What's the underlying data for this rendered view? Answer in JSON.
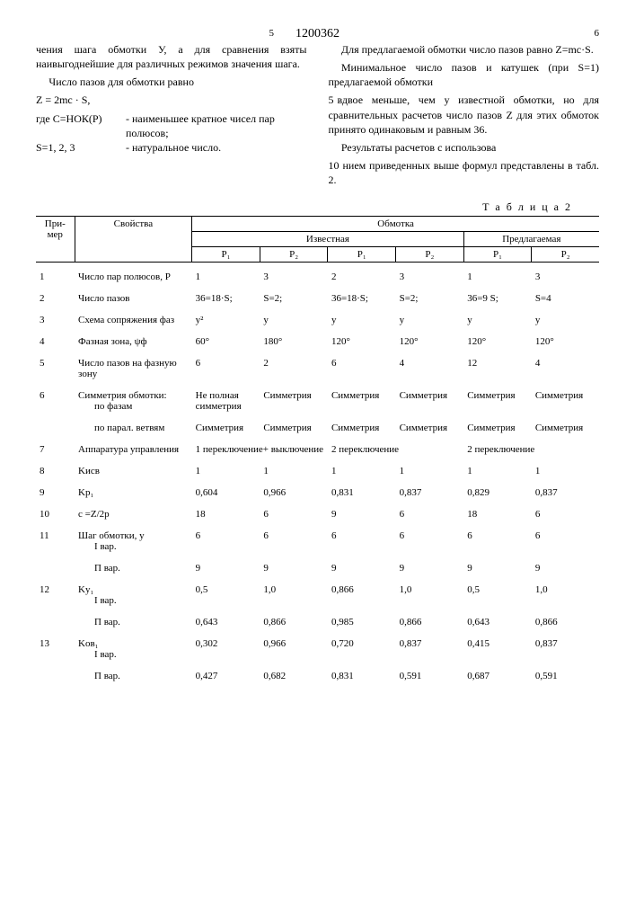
{
  "doc_number": "1200362",
  "col_left_marker": "5",
  "col_right_marker": "6",
  "line5": "5",
  "line10": "10",
  "left_col": {
    "p1": "чения шага обмотки У, а для срав­нения взяты наивыгоднейшие для различных режимов значения ша­га.",
    "p2": "Число пазов для обмотки равно",
    "formula": "Z = 2mс · S,",
    "where1_l": "где С=НОК(Р)",
    "where1_r": "- наименьшее кратное чисел пар полюсов;",
    "where2_l": "S=1, 2, 3",
    "where2_r": "- натуральное число."
  },
  "right_col": {
    "p1": "Для предлагаемой обмотки число пазов равно Z=mс·S.",
    "p2a": "Минимальное число пазов и кату­шек (при S=1) предлагаемой обмотки",
    "p2b": "вдвое меньше, чем у известной обмот­ки, но для сравнительных рас­четов число пазов Z для этих обмо­ток принято одинаковым и равным 36.",
    "p3a": "Результаты расчетов с использова­",
    "p3b": "нием приведенных выше формул пред­ставлены в табл. 2."
  },
  "table_caption": "Т а б л и ц а 2",
  "headers": {
    "primer": "При­мер",
    "prop": "Свойства",
    "obm": "Обмотка",
    "izv": "Известная",
    "pred": "Предлагаемая",
    "p1": "P₁",
    "p2": "P₂"
  },
  "rows": [
    {
      "n": "1",
      "prop": "Число пар полюсов, Р",
      "c": [
        "1",
        "3",
        "2",
        "3",
        "1",
        "3"
      ]
    },
    {
      "n": "2",
      "prop": "Число пазов",
      "c": [
        "36=18·S;",
        "S=2;",
        "36=18·S;",
        "S=2;",
        "36=9 S;",
        "S=4"
      ]
    },
    {
      "n": "3",
      "prop": "Схема сопряжения фаз",
      "c": [
        "у²",
        "у",
        "у",
        "у",
        "у",
        "у"
      ]
    },
    {
      "n": "4",
      "prop": "Фазная зона, ψф",
      "c": [
        "60°",
        "180°",
        "120°",
        "120°",
        "120°",
        "120°"
      ]
    },
    {
      "n": "5",
      "prop": "Число пазов на фаз­ную зону",
      "c": [
        "6",
        "2",
        "6",
        "4",
        "12",
        "4"
      ]
    },
    {
      "n": "6",
      "prop": "Симметрия обмотки:",
      "sub": "по фазам",
      "c": [
        "Не пол­ная сим­метрия",
        "Симмет­рия",
        "Симмет­рия",
        "Симмет­рия",
        "Симмет­рия",
        "Симмет­рия"
      ]
    },
    {
      "n": "",
      "prop": "",
      "sub": "по парал. ветвям",
      "c": [
        "Симмет­рия",
        "Симмет­рия",
        "Симмет­рия",
        "Симмет­рия",
        "Симмет­рия",
        "Симмет­рия"
      ]
    },
    {
      "n": "7",
      "prop": "Аппаратура управле­ния",
      "c": [
        "1 переключение+ выключение",
        "",
        "2 переключение",
        "",
        "2 переключение",
        ""
      ],
      "span": [
        2,
        0,
        2,
        0,
        2,
        0
      ]
    },
    {
      "n": "8",
      "prop": "Kисв",
      "c": [
        "1",
        "1",
        "1",
        "1",
        "1",
        "1"
      ]
    },
    {
      "n": "9",
      "prop": "Kр₁",
      "c": [
        "0,604",
        "0,966",
        "0,831",
        "0,837",
        "0,829",
        "0,837"
      ]
    },
    {
      "n": "10",
      "prop": "с =Z/2р",
      "c": [
        "18",
        "6",
        "9",
        "6",
        "18",
        "6"
      ]
    },
    {
      "n": "11",
      "prop": "Шаг обмотки, у",
      "sub": "I вар.",
      "c": [
        "6",
        "6",
        "6",
        "6",
        "6",
        "6"
      ]
    },
    {
      "n": "",
      "prop": "",
      "sub": "П вар.",
      "c": [
        "9",
        "9",
        "9",
        "9",
        "9",
        "9"
      ]
    },
    {
      "n": "12",
      "prop": "Kу₁",
      "sub": "I вар.",
      "c": [
        "0,5",
        "1,0",
        "0,866",
        "1,0",
        "0,5",
        "1,0"
      ]
    },
    {
      "n": "",
      "prop": "",
      "sub": "П вар.",
      "c": [
        "0,643",
        "0,866",
        "0,985",
        "0,866",
        "0,643",
        "0,866"
      ]
    },
    {
      "n": "13",
      "prop": "Kов₁",
      "sub": "I вар.",
      "c": [
        "0,302",
        "0,966",
        "0,720",
        "0,837",
        "0,415",
        "0,837"
      ]
    },
    {
      "n": "",
      "prop": "",
      "sub": "П вар.",
      "c": [
        "0,427",
        "0,682",
        "0,831",
        "0,591",
        "0,687",
        "0,591"
      ]
    }
  ]
}
